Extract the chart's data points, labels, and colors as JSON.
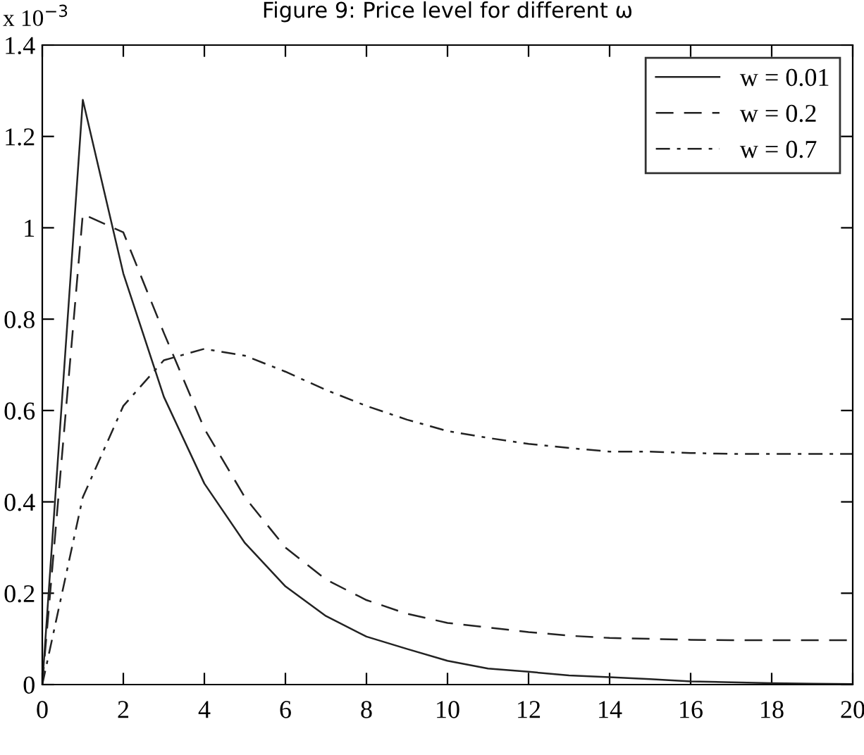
{
  "chart_data": {
    "type": "line",
    "title": "Figure 9: Price level for different ω",
    "annotations": [
      "x 10$^{−3}$"
    ],
    "x": [
      0,
      1,
      2,
      3,
      4,
      5,
      6,
      7,
      8,
      9,
      10,
      11,
      12,
      13,
      14,
      15,
      16,
      17,
      18,
      19,
      20
    ],
    "series": [
      {
        "name": "w = 0.01",
        "color": "#222222",
        "line_style": "solid",
        "values": [
          0,
          1.28,
          0.9,
          0.63,
          0.44,
          0.31,
          0.215,
          0.15,
          0.105,
          0.078,
          0.052,
          0.035,
          0.028,
          0.02,
          0.016,
          0.012,
          0.007,
          0.005,
          0.003,
          0.002,
          0.001
        ]
      },
      {
        "name": "w = 0.2",
        "color": "#222222",
        "line_style": "dashed",
        "values": [
          0,
          1.03,
          0.99,
          0.77,
          0.56,
          0.41,
          0.3,
          0.23,
          0.185,
          0.155,
          0.135,
          0.125,
          0.115,
          0.107,
          0.102,
          0.1,
          0.098,
          0.097,
          0.097,
          0.097,
          0.097
        ]
      },
      {
        "name": "w = 0.7",
        "color": "#222222",
        "line_style": "dashdot",
        "values": [
          0,
          0.41,
          0.61,
          0.71,
          0.735,
          0.72,
          0.685,
          0.645,
          0.61,
          0.58,
          0.555,
          0.54,
          0.527,
          0.518,
          0.51,
          0.51,
          0.507,
          0.505,
          0.505,
          0.505,
          0.505
        ]
      }
    ],
    "xlim": [
      0,
      20
    ],
    "xticks": [
      0,
      2,
      4,
      6,
      8,
      10,
      12,
      14,
      16,
      18,
      20
    ],
    "ylim": [
      0,
      1.4
    ],
    "yticks": [
      0,
      0.2,
      0.4,
      0.6,
      0.8,
      1,
      1.2,
      1.4
    ],
    "grid": false,
    "legend": "top right",
    "marker": "none"
  }
}
